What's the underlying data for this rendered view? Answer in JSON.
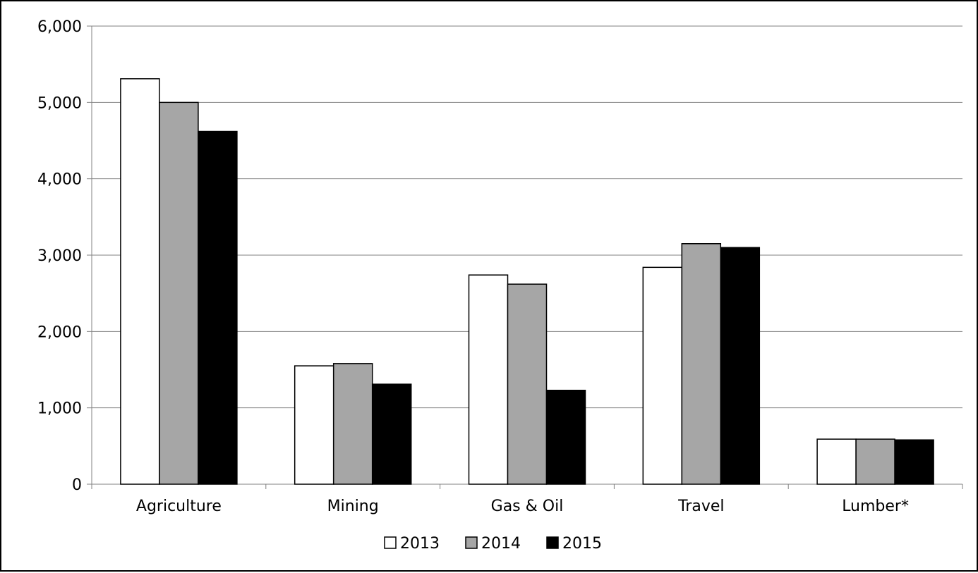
{
  "chart_data": {
    "type": "bar",
    "title": "",
    "xlabel": "",
    "ylabel": "",
    "categories": [
      "Agriculture",
      "Mining",
      "Gas & Oil",
      "Travel",
      "Lumber*"
    ],
    "series": [
      {
        "name": "2013",
        "color": "#ffffff",
        "values": [
          5310,
          1550,
          2740,
          2840,
          590
        ]
      },
      {
        "name": "2014",
        "color": "#a6a6a6",
        "values": [
          5000,
          1580,
          2620,
          3150,
          590
        ]
      },
      {
        "name": "2015",
        "color": "#000000",
        "values": [
          4620,
          1310,
          1230,
          3100,
          580
        ]
      }
    ],
    "ylim": [
      0,
      6000
    ],
    "yticks": [
      0,
      1000,
      2000,
      3000,
      4000,
      5000,
      6000
    ],
    "ytick_labels": [
      "0",
      "1,000",
      "2,000",
      "3,000",
      "4,000",
      "5,000",
      "6,000"
    ],
    "grid": true,
    "legend": "bottom",
    "colors": {
      "gridline": "#808080",
      "axis": "#808080",
      "bar_outline": "#000000"
    }
  }
}
